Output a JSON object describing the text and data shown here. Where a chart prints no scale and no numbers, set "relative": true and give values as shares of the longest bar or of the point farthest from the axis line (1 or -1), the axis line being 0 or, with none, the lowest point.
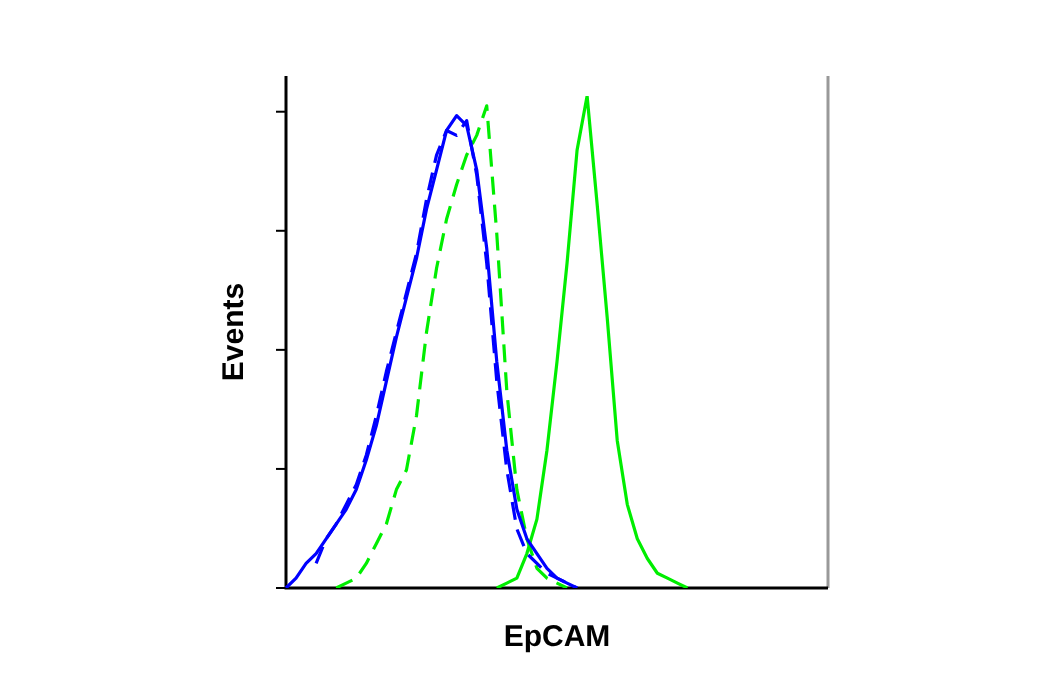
{
  "chart_data": {
    "type": "line",
    "xlabel": "EpCAM",
    "ylabel": "Events",
    "relative": true,
    "legend": false,
    "grid": false,
    "marker": "none",
    "categories": [
      null,
      null,
      null,
      null,
      null,
      null,
      null,
      null,
      null,
      null,
      null,
      null,
      null,
      null,
      null,
      null,
      null,
      null,
      null,
      null,
      null,
      null,
      null,
      null,
      null,
      null,
      null,
      null,
      null,
      null,
      null,
      null,
      null,
      null,
      null,
      null,
      null,
      null,
      null,
      null,
      null,
      null,
      null,
      null,
      null,
      null,
      null,
      null,
      null,
      null,
      null,
      null,
      null,
      null,
      null
    ],
    "series": [
      {
        "color": "#0000ff",
        "line_style": "solid",
        "values": [
          0,
          0.02,
          0.05,
          0.07,
          0.1,
          0.13,
          0.16,
          0.2,
          0.26,
          0.33,
          0.42,
          0.51,
          0.59,
          0.67,
          0.77,
          0.85,
          0.93,
          0.96,
          0.94,
          0.85,
          0.69,
          0.46,
          0.28,
          0.16,
          0.1,
          0.07,
          0.04,
          0.02,
          0.01,
          0,
          null,
          null,
          null,
          null,
          null,
          null,
          null,
          null,
          null,
          null,
          null,
          null,
          null,
          null,
          null,
          null,
          null,
          null,
          null,
          null,
          null,
          null,
          null,
          null,
          null
        ]
      },
      {
        "color": "#0000ff",
        "line_style": "dashed",
        "values": [
          null,
          null,
          null,
          0.05,
          0.1,
          0.13,
          0.17,
          0.21,
          0.27,
          0.35,
          0.44,
          0.52,
          0.6,
          0.68,
          0.79,
          0.88,
          0.93,
          0.92,
          0.95,
          0.84,
          0.66,
          0.42,
          0.24,
          0.12,
          0.07,
          0.05,
          0.03,
          0.02,
          0.01,
          0,
          null,
          null,
          null,
          null,
          null,
          null,
          null,
          null,
          null,
          null,
          null,
          null,
          null,
          null,
          null,
          null,
          null,
          null,
          null,
          null,
          null,
          null,
          null,
          null,
          null
        ]
      },
      {
        "color": "#00ee00",
        "line_style": "dashed",
        "values": [
          null,
          null,
          null,
          null,
          null,
          0,
          0.01,
          0.02,
          0.05,
          0.09,
          0.13,
          0.2,
          0.24,
          0.35,
          0.52,
          0.65,
          0.75,
          0.82,
          0.88,
          0.92,
          0.98,
          0.72,
          0.4,
          0.2,
          0.1,
          0.04,
          0.02,
          0.01,
          0,
          null,
          null,
          null,
          null,
          null,
          null,
          null,
          null,
          null,
          null,
          null,
          null,
          null,
          null,
          null,
          null,
          null,
          null,
          null,
          null,
          null,
          null,
          null,
          null,
          null,
          null
        ]
      },
      {
        "color": "#00ee00",
        "line_style": "solid",
        "values": [
          null,
          null,
          null,
          null,
          null,
          null,
          null,
          null,
          null,
          null,
          null,
          null,
          null,
          null,
          null,
          null,
          null,
          null,
          null,
          null,
          null,
          0,
          0.01,
          0.02,
          0.07,
          0.14,
          0.28,
          0.46,
          0.66,
          0.89,
          1,
          0.78,
          0.55,
          0.3,
          0.17,
          0.1,
          0.06,
          0.03,
          0.02,
          0.01,
          0,
          null,
          null,
          null,
          null,
          null,
          null,
          null,
          null,
          null,
          null,
          null,
          null,
          null,
          null
        ]
      }
    ]
  }
}
